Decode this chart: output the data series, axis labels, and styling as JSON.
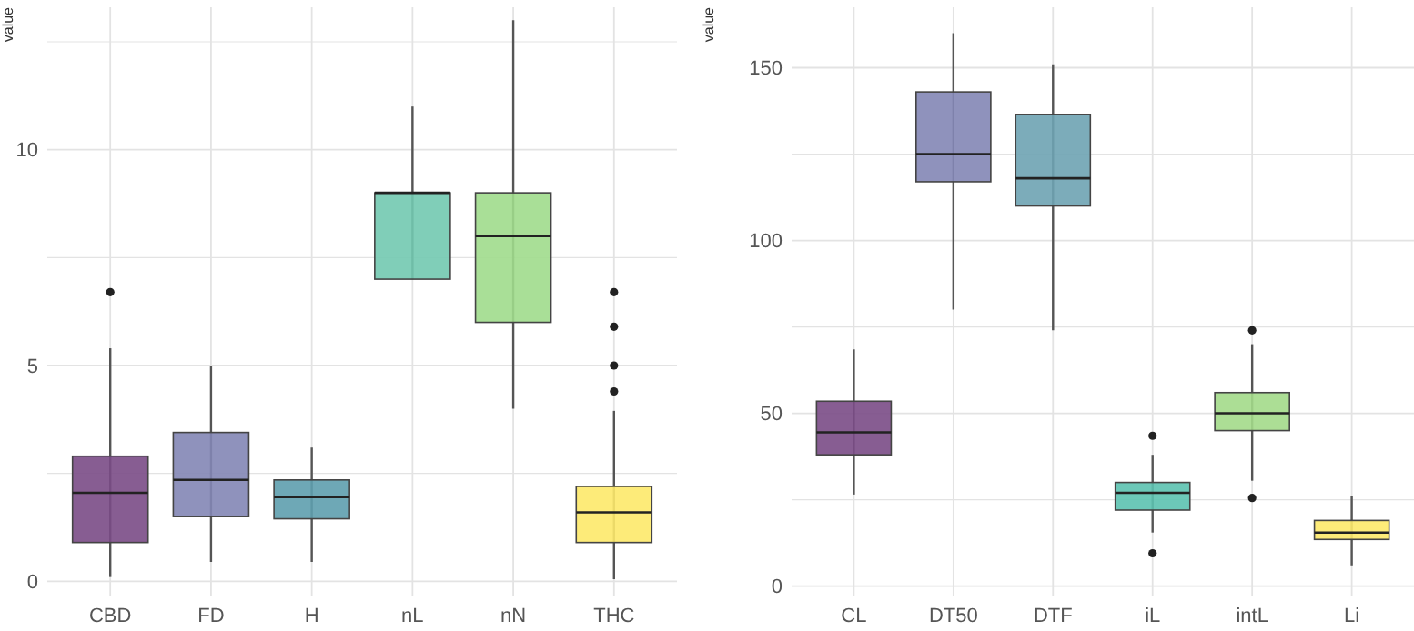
{
  "chart_data": [
    {
      "type": "box",
      "ylabel": "value",
      "categories": [
        "CBD",
        "FD",
        "H",
        "nL",
        "nN",
        "THC"
      ],
      "colors": [
        "#7a4b86",
        "#8386b5",
        "#5e9fae",
        "#72c9b0",
        "#a0dc8c",
        "#fde96a"
      ],
      "boxes": [
        {
          "low": 0.1,
          "q1": 0.9,
          "median": 2.05,
          "q3": 2.9,
          "high": 5.4,
          "outliers": [
            6.7
          ]
        },
        {
          "low": 0.45,
          "q1": 1.5,
          "median": 2.35,
          "q3": 3.45,
          "high": 5.0
        },
        {
          "low": 0.45,
          "q1": 1.45,
          "median": 1.95,
          "q3": 2.35,
          "high": 3.1
        },
        {
          "low": 7,
          "q1": 7,
          "median": 9,
          "q3": 9,
          "high": 11
        },
        {
          "low": 4,
          "q1": 6,
          "median": 8,
          "q3": 9,
          "high": 13
        },
        {
          "low": 0.05,
          "q1": 0.9,
          "median": 1.6,
          "q3": 2.2,
          "high": 3.95,
          "outliers": [
            4.4,
            5.0,
            5.9,
            6.7
          ]
        }
      ],
      "ylim": [
        -0.35,
        13.3
      ],
      "yticks": [
        0,
        {
          "value": 2.5,
          "label": null
        },
        5,
        {
          "value": 7.5,
          "label": null
        },
        10,
        {
          "value": 12.5,
          "label": null
        }
      ],
      "grid": true
    },
    {
      "type": "box",
      "ylabel": "value",
      "categories": [
        "CL",
        "DT50",
        "DTF",
        "iL",
        "intL",
        "Li"
      ],
      "colors": [
        "#7a4b86",
        "#8386b5",
        "#6ea3b3",
        "#5cc2b0",
        "#a3da89",
        "#fde96a"
      ],
      "boxes": [
        {
          "low": 26.5,
          "q1": 38,
          "median": 44.5,
          "q3": 53.5,
          "high": 68.5
        },
        {
          "low": 80,
          "q1": 117,
          "median": 125,
          "q3": 143,
          "high": 160
        },
        {
          "low": 74,
          "q1": 110,
          "median": 118,
          "q3": 136.5,
          "high": 151
        },
        {
          "low": 15.5,
          "q1": 22,
          "median": 27,
          "q3": 30,
          "high": 38,
          "outliers": [
            43.5,
            9.5
          ]
        },
        {
          "low": 30.5,
          "q1": 45,
          "median": 50,
          "q3": 56,
          "high": 70,
          "outliers": [
            74,
            25.5
          ]
        },
        {
          "low": 6,
          "q1": 13.5,
          "median": 15.5,
          "q3": 19,
          "high": 26
        }
      ],
      "ylim": [
        -3,
        167.5
      ],
      "yticks": [
        0,
        {
          "value": 25,
          "label": null
        },
        50,
        {
          "value": 75,
          "label": null
        },
        100,
        {
          "value": 125,
          "label": null
        },
        150
      ],
      "grid": true
    }
  ]
}
